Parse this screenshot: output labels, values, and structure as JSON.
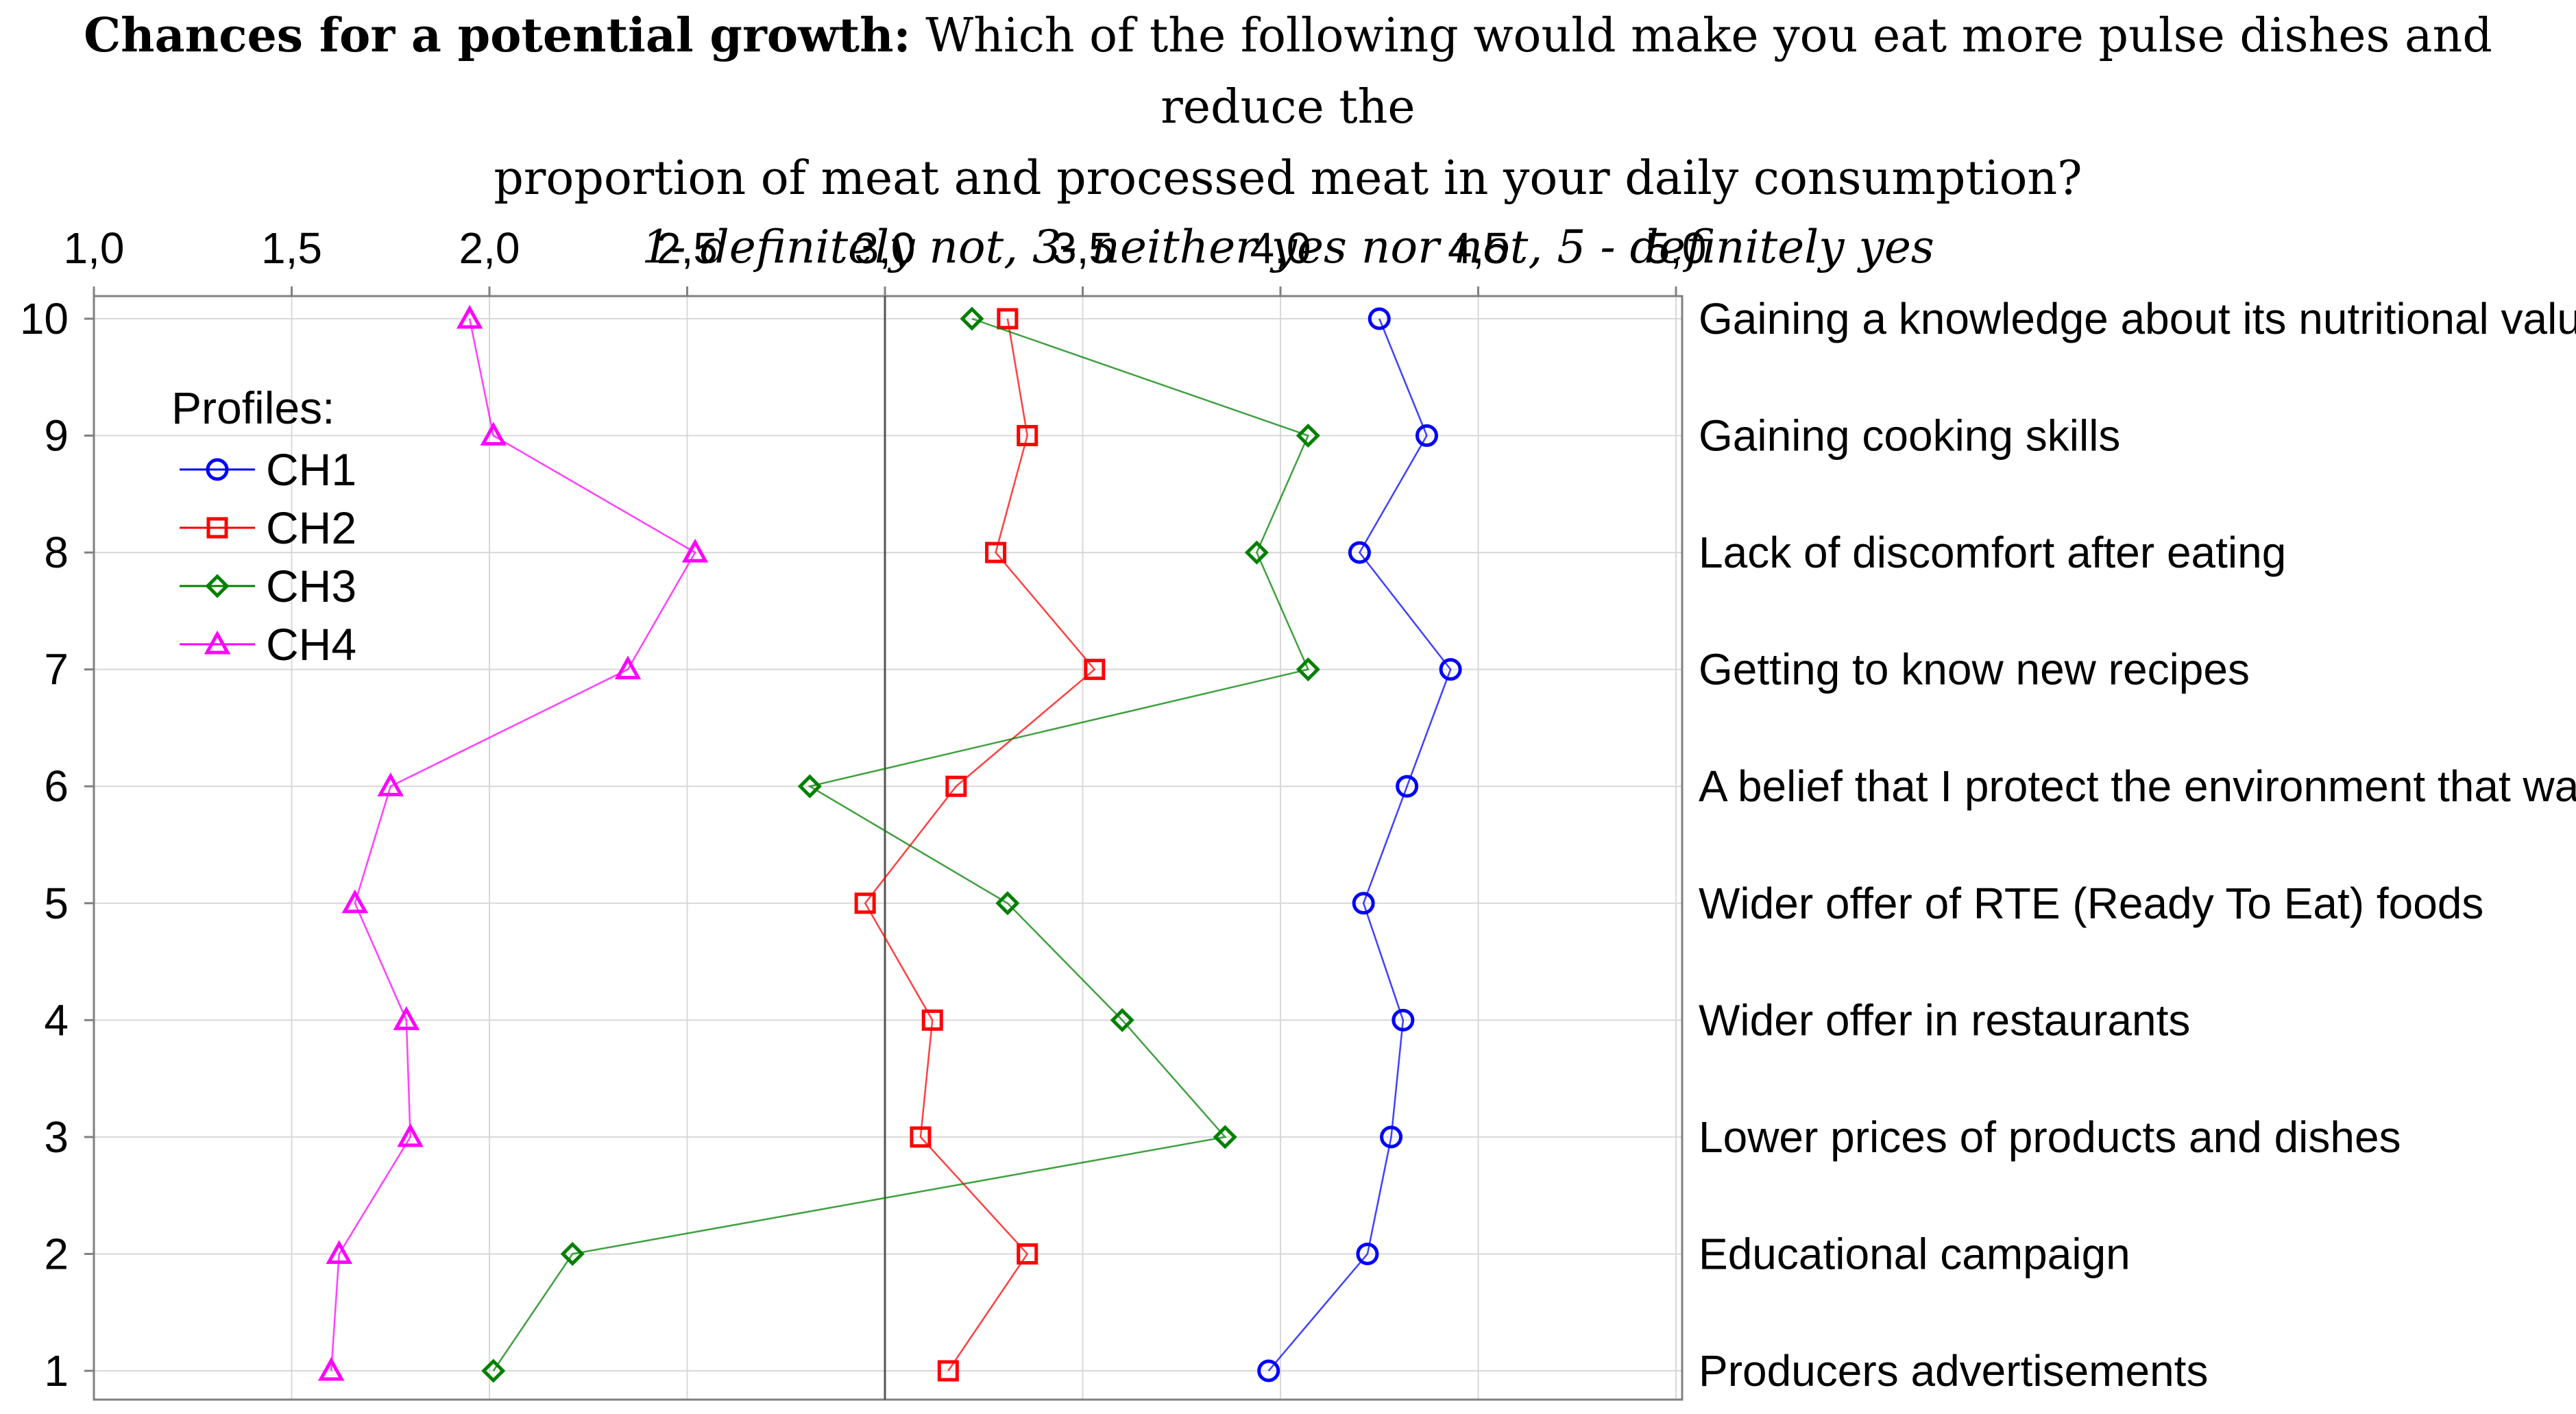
{
  "title": {
    "bold": "Chances for a potential growth:",
    "rest1": " Which of the following would make you eat more pulse dishes and reduce the",
    "line2": "proportion of meat and processed meat in your daily consumption?",
    "subtitle": "1- definitely not, 3- neither yes nor not, 5 - definitely yes"
  },
  "chart_data": {
    "type": "line",
    "title": "Chances for a potential growth: Which of the following would make you eat more pulse dishes and reduce the proportion of meat and processed meat in your daily consumption?",
    "subtitle": "1- definitely not, 3- neither yes nor not, 5 - definitely yes",
    "orientation": "horizontal",
    "xlim": [
      1.0,
      5.0
    ],
    "x_ticks": [
      "1,0",
      "1,5",
      "2,0",
      "2,5",
      "3,0",
      "3,5",
      "4,0",
      "4,5",
      "5,0"
    ],
    "x_tick_values": [
      1.0,
      1.5,
      2.0,
      2.5,
      3.0,
      3.5,
      4.0,
      4.5,
      5.0
    ],
    "reference_line": 3.0,
    "y_ticks": [
      "1",
      "2",
      "3",
      "4",
      "5",
      "6",
      "7",
      "8",
      "9",
      "10"
    ],
    "categories": [
      "Producers advertisements",
      "Educational campaign",
      "Lower prices of products and dishes",
      "Wider offer in restaurants",
      "Wider offer of RTE (Ready To Eat) foods",
      "A belief that I protect the environment that way",
      "Getting to know new recipes",
      "Lack of discomfort after eating",
      "Gaining cooking skills",
      "Gaining a knowledge about its nutritional value"
    ],
    "legend_title": "Profiles:",
    "legend_position": "upper-left",
    "grid": true,
    "series": [
      {
        "name": "CH1",
        "color": "#0000ff",
        "marker": "circle",
        "values": [
          3.97,
          4.22,
          4.28,
          4.31,
          4.21,
          4.32,
          4.43,
          4.2,
          4.37,
          4.25
        ]
      },
      {
        "name": "CH2",
        "color": "#ff0000",
        "marker": "square",
        "values": [
          3.16,
          3.36,
          3.09,
          3.12,
          2.95,
          3.18,
          3.53,
          3.28,
          3.36,
          3.31
        ]
      },
      {
        "name": "CH3",
        "color": "#008000",
        "marker": "diamond",
        "values": [
          2.01,
          2.21,
          3.86,
          3.6,
          3.31,
          2.81,
          4.07,
          3.94,
          4.07,
          3.22
        ]
      },
      {
        "name": "CH4",
        "color": "#ff00ff",
        "marker": "triangle",
        "values": [
          1.6,
          1.62,
          1.8,
          1.79,
          1.66,
          1.75,
          2.35,
          2.52,
          2.01,
          1.95
        ]
      }
    ]
  }
}
